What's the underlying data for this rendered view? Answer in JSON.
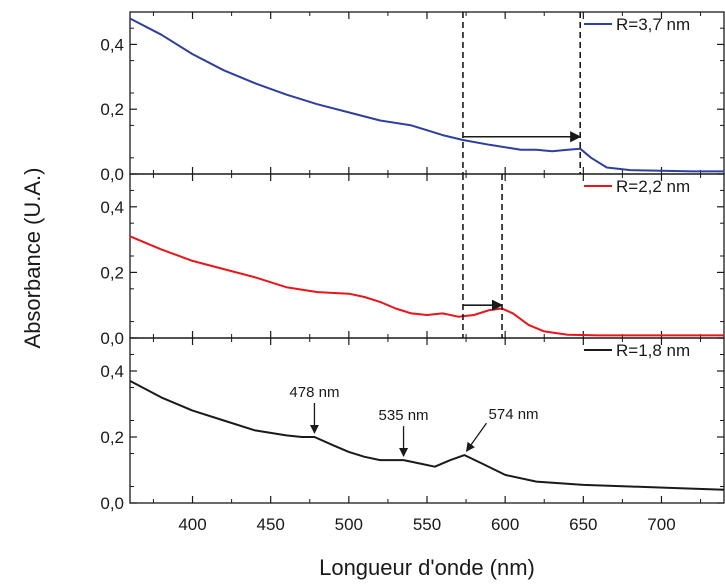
{
  "chart_data": {
    "type": "line",
    "xlabel": "Longueur d'onde (nm)",
    "ylabel": "Absorbance (U.A.)",
    "xlim": [
      360,
      740
    ],
    "x_ticks": [
      400,
      450,
      500,
      550,
      600,
      650,
      700
    ],
    "x_tick_labels": [
      "400",
      "450",
      "500",
      "550",
      "600",
      "650",
      "700"
    ],
    "grid": false,
    "legend_position": "top-right",
    "panels": [
      {
        "ylim": [
          0,
          0.5
        ],
        "y_ticks": [
          0,
          0.2,
          0.4
        ],
        "y_tick_labels": [
          "0,0",
          "0,2",
          "0,4"
        ],
        "series": [
          {
            "name": "R=3,7 nm",
            "color": "#2e3f9e",
            "x": [
              360,
              380,
              400,
              420,
              440,
              460,
              480,
              500,
              520,
              540,
              560,
              573,
              590,
              610,
              620,
              630,
              640,
              648,
              655,
              665,
              680,
              700,
              720,
              740
            ],
            "y": [
              0.48,
              0.43,
              0.37,
              0.32,
              0.28,
              0.245,
              0.215,
              0.19,
              0.165,
              0.15,
              0.12,
              0.105,
              0.09,
              0.075,
              0.075,
              0.07,
              0.075,
              0.078,
              0.05,
              0.02,
              0.012,
              0.01,
              0.008,
              0.008
            ]
          }
        ],
        "marker_lines_x": [
          573,
          648
        ],
        "arrow": {
          "from_x": 573,
          "to_x": 648,
          "y": 0.115
        }
      },
      {
        "ylim": [
          0,
          0.5
        ],
        "y_ticks": [
          0,
          0.2,
          0.4
        ],
        "y_tick_labels": [
          "0,0",
          "0,2",
          "0,4"
        ],
        "series": [
          {
            "name": "R=2,2 nm",
            "color": "#e8151b",
            "x": [
              360,
              380,
              400,
              420,
              440,
              460,
              480,
              500,
              510,
              520,
              530,
              540,
              550,
              560,
              570,
              580,
              590,
              598,
              605,
              615,
              625,
              640,
              660,
              680,
              700,
              720,
              740
            ],
            "y": [
              0.31,
              0.27,
              0.235,
              0.21,
              0.185,
              0.155,
              0.14,
              0.135,
              0.125,
              0.11,
              0.09,
              0.075,
              0.07,
              0.075,
              0.065,
              0.07,
              0.085,
              0.09,
              0.075,
              0.04,
              0.02,
              0.01,
              0.008,
              0.008,
              0.008,
              0.008,
              0.008
            ]
          }
        ],
        "marker_lines_x": [
          573,
          598
        ],
        "arrow": {
          "from_x": 573,
          "to_x": 598,
          "y": 0.1
        }
      },
      {
        "ylim": [
          0,
          0.5
        ],
        "y_ticks": [
          0,
          0.2,
          0.4
        ],
        "y_tick_labels": [
          "0,0",
          "0,2",
          "0,4"
        ],
        "series": [
          {
            "name": "R=1,8 nm",
            "color": "#1a1a1a",
            "x": [
              360,
              380,
              400,
              420,
              440,
              460,
              470,
              478,
              490,
              500,
              510,
              520,
              535,
              545,
              555,
              565,
              574,
              585,
              600,
              620,
              650,
              680,
              710,
              740
            ],
            "y": [
              0.37,
              0.32,
              0.28,
              0.25,
              0.22,
              0.205,
              0.2,
              0.2,
              0.175,
              0.155,
              0.14,
              0.13,
              0.13,
              0.12,
              0.11,
              0.13,
              0.145,
              0.12,
              0.085,
              0.065,
              0.055,
              0.05,
              0.045,
              0.04
            ]
          }
        ],
        "annotations": [
          {
            "text": "478 nm",
            "x": 478
          },
          {
            "text": "535 nm",
            "x": 535
          },
          {
            "text": "574 nm",
            "x": 574
          }
        ]
      }
    ]
  }
}
